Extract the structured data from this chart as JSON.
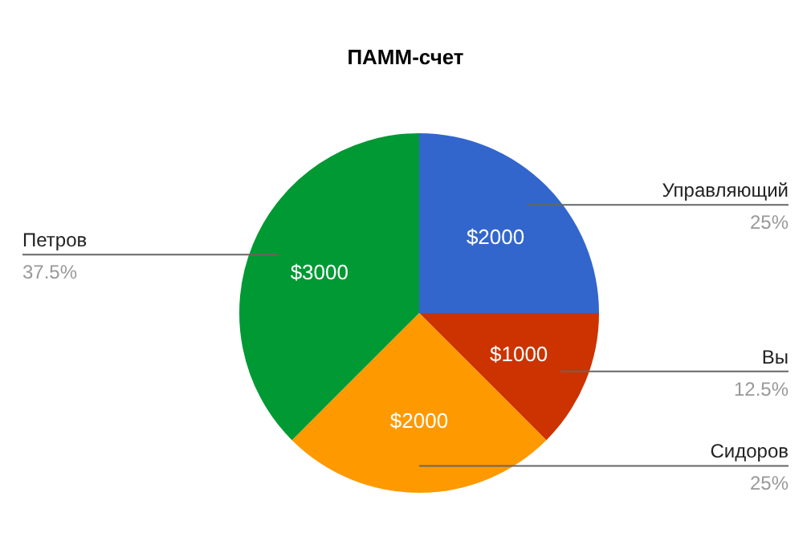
{
  "chart_data": {
    "type": "pie",
    "title": "ПАММ-счет",
    "categories": [
      "Управляющий",
      "Вы",
      "Сидоров",
      "Петров"
    ],
    "values": [
      2000,
      1000,
      2000,
      3000
    ],
    "colors": [
      "#3366cc",
      "#cc3300",
      "#ff9900",
      "#009933"
    ],
    "value_labels": [
      "$2000",
      "$1000",
      "$2000",
      "$3000"
    ],
    "annotations": [
      "25%",
      "12.5%",
      "25%",
      "37.5%"
    ],
    "legend": false
  }
}
